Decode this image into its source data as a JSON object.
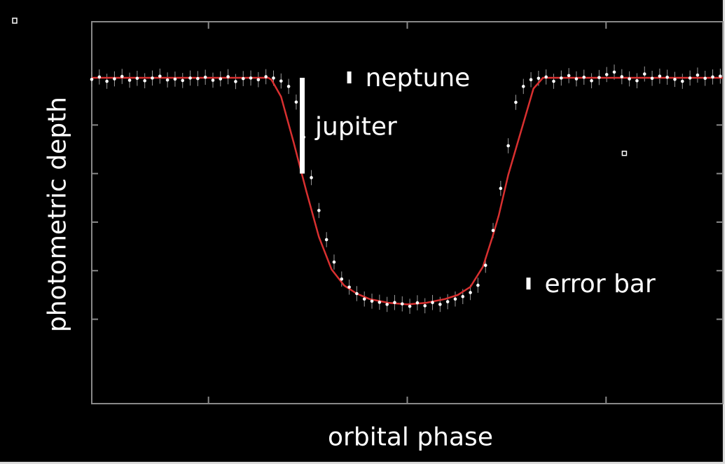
{
  "chart_data": {
    "type": "scatter",
    "title": "",
    "xlabel": "orbital phase",
    "ylabel": "photometric depth",
    "xlim": [
      0,
      1
    ],
    "ylim": [
      0,
      1
    ],
    "ytick_values": [
      0.105,
      0.285,
      0.465,
      0.645,
      0.825
    ],
    "xtick_values": [
      0.185,
      0.5,
      0.815
    ],
    "grid": false,
    "axes": {
      "line_color": "#888888",
      "text_color": "#ffffff"
    },
    "series": [
      {
        "kind": "points_with_error_bars",
        "color": "#ffffff",
        "error_bar_color": "#9a9a9a",
        "error": 0.028,
        "x": [
          0.0,
          0.012,
          0.024,
          0.036,
          0.048,
          0.06,
          0.072,
          0.084,
          0.096,
          0.108,
          0.12,
          0.132,
          0.144,
          0.156,
          0.168,
          0.18,
          0.192,
          0.204,
          0.216,
          0.228,
          0.24,
          0.252,
          0.264,
          0.276,
          0.288,
          0.3,
          0.312,
          0.324,
          0.336,
          0.348,
          0.36,
          0.372,
          0.384,
          0.396,
          0.408,
          0.42,
          0.432,
          0.444,
          0.456,
          0.468,
          0.48,
          0.492,
          0.504,
          0.516,
          0.528,
          0.54,
          0.552,
          0.564,
          0.576,
          0.588,
          0.6,
          0.612,
          0.624,
          0.636,
          0.648,
          0.66,
          0.672,
          0.684,
          0.696,
          0.708,
          0.72,
          0.732,
          0.744,
          0.756,
          0.768,
          0.78,
          0.792,
          0.804,
          0.816,
          0.828,
          0.84,
          0.852,
          0.864,
          0.876,
          0.888,
          0.9,
          0.912,
          0.924,
          0.936,
          0.948,
          0.96,
          0.972,
          0.984,
          0.996
        ],
        "y": [
          0.994,
          1.003,
          0.987,
          0.996,
          1.005,
          0.991,
          0.998,
          0.989,
          0.999,
          1.006,
          0.992,
          0.995,
          0.99,
          0.999,
          0.997,
          1.002,
          0.991,
          0.996,
          1.004,
          0.986,
          0.997,
          0.999,
          0.993,
          1.004,
          0.999,
          0.988,
          0.968,
          0.91,
          0.78,
          0.63,
          0.508,
          0.4,
          0.317,
          0.254,
          0.224,
          0.2,
          0.18,
          0.172,
          0.168,
          0.16,
          0.167,
          0.162,
          0.153,
          0.166,
          0.155,
          0.167,
          0.16,
          0.17,
          0.18,
          0.189,
          0.204,
          0.231,
          0.305,
          0.434,
          0.59,
          0.748,
          0.909,
          0.968,
          0.993,
          0.998,
          1.003,
          0.987,
          0.999,
          1.008,
          0.996,
          1.002,
          0.989,
          1.001,
          1.012,
          1.021,
          1.004,
          0.996,
          0.989,
          1.014,
          0.998,
          1.006,
          1.002,
          0.994,
          0.987,
          0.999,
          1.01,
          0.998,
          1.003,
          1.006
        ]
      },
      {
        "kind": "model_line",
        "color": "#d93030",
        "x": [
          0.0,
          0.28,
          0.285,
          0.3,
          0.32,
          0.34,
          0.36,
          0.38,
          0.4,
          0.42,
          0.44,
          0.47,
          0.5,
          0.53,
          0.56,
          0.58,
          0.6,
          0.62,
          0.635,
          0.645,
          0.66,
          0.68,
          0.7,
          0.715,
          1.0
        ],
        "y": [
          1.0,
          1.0,
          0.992,
          0.93,
          0.76,
          0.58,
          0.41,
          0.29,
          0.23,
          0.2,
          0.18,
          0.166,
          0.16,
          0.166,
          0.18,
          0.195,
          0.225,
          0.3,
          0.41,
          0.49,
          0.64,
          0.8,
          0.96,
          1.0,
          1.0
        ]
      }
    ],
    "annotations": [
      {
        "text": "neptune",
        "marker": "small-bar",
        "x": 0.408,
        "y": 1.0
      },
      {
        "text": "jupiter",
        "marker": "tall-bar",
        "x": 0.333,
        "y_top": 1.0,
        "y_bottom": 0.645
      },
      {
        "text": "error bar",
        "marker": "small-bar",
        "x": 0.692,
        "y": 0.236
      }
    ],
    "extra_markers": [
      {
        "x": 0.844,
        "y": 0.72
      }
    ]
  }
}
